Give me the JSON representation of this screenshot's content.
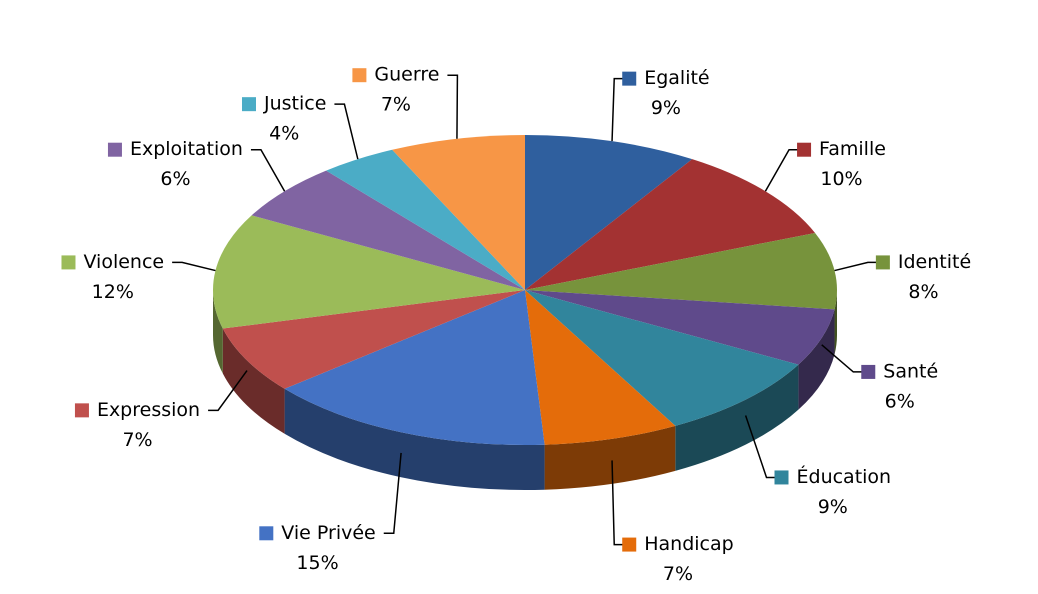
{
  "chart_data": {
    "type": "pie",
    "categories": [
      "Egalité",
      "Famille",
      "Identité",
      "Santé",
      "Éducation",
      "Handicap",
      "Vie Privée",
      "Expression",
      "Violence",
      "Exploitation",
      "Justice",
      "Guerre"
    ],
    "values": [
      9,
      10,
      8,
      6,
      9,
      7,
      15,
      7,
      12,
      6,
      4,
      7
    ],
    "value_labels": [
      "9%",
      "10%",
      "8%",
      "6%",
      "9%",
      "7%",
      "15%",
      "7%",
      "12%",
      "6%",
      "4%",
      "7%"
    ],
    "colors": [
      "#2f5f9e",
      "#a33232",
      "#77933c",
      "#5f4a8b",
      "#31859c",
      "#e46c0a",
      "#4472c4",
      "#c0504d",
      "#9bbb59",
      "#8064a2",
      "#4bacc6",
      "#f79646"
    ]
  }
}
